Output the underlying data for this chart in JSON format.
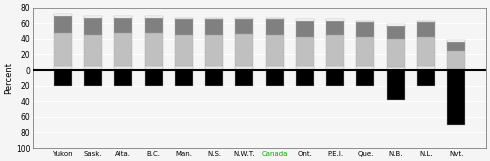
{
  "categories": [
    "Yukon",
    "Sask.",
    "Alta.",
    "B.C.",
    "Man.",
    "N.S.",
    "N.W.T.",
    "Canada",
    "Ont.",
    "P.E.I.",
    "Que.",
    "N.B.",
    "N.L.",
    "Nvt."
  ],
  "canada_index": 7,
  "segments_above": {
    "top_white": [
      3,
      2,
      2,
      2,
      2,
      2,
      2,
      2,
      2,
      2,
      2,
      2,
      2,
      2
    ],
    "dark_gray": [
      22,
      22,
      20,
      20,
      20,
      20,
      19,
      20,
      20,
      18,
      18,
      17,
      18,
      12
    ],
    "light_gray": [
      42,
      40,
      42,
      42,
      40,
      40,
      41,
      40,
      38,
      40,
      38,
      36,
      38,
      22
    ],
    "very_light": [
      5,
      5,
      5,
      5,
      5,
      5,
      5,
      5,
      5,
      5,
      5,
      4,
      5,
      2
    ]
  },
  "negative_bar": [
    -20,
    -20,
    -20,
    -20,
    -21,
    -20,
    -20,
    -20,
    -20,
    -20,
    -20,
    -38,
    -20,
    -70
  ],
  "ylim": [
    -100,
    80
  ],
  "yticks": [
    -100,
    -80,
    -60,
    -40,
    -20,
    0,
    20,
    40,
    60,
    80
  ],
  "ytick_labels": [
    "100",
    "80",
    "60",
    "40",
    "20",
    "0",
    "20",
    "40",
    "60",
    "80"
  ],
  "ylabel": "Percent",
  "colors": {
    "top_white": "#ffffff",
    "dark_gray": "#808080",
    "light_gray": "#c0c0c0",
    "very_light": "#e8e8e8",
    "negative": "#000000",
    "canada_label": "#00aa00",
    "border_color": "#aaaaaa"
  },
  "bar_width": 0.6,
  "background_color": "#f5f5f5",
  "grid_color": "#ffffff"
}
